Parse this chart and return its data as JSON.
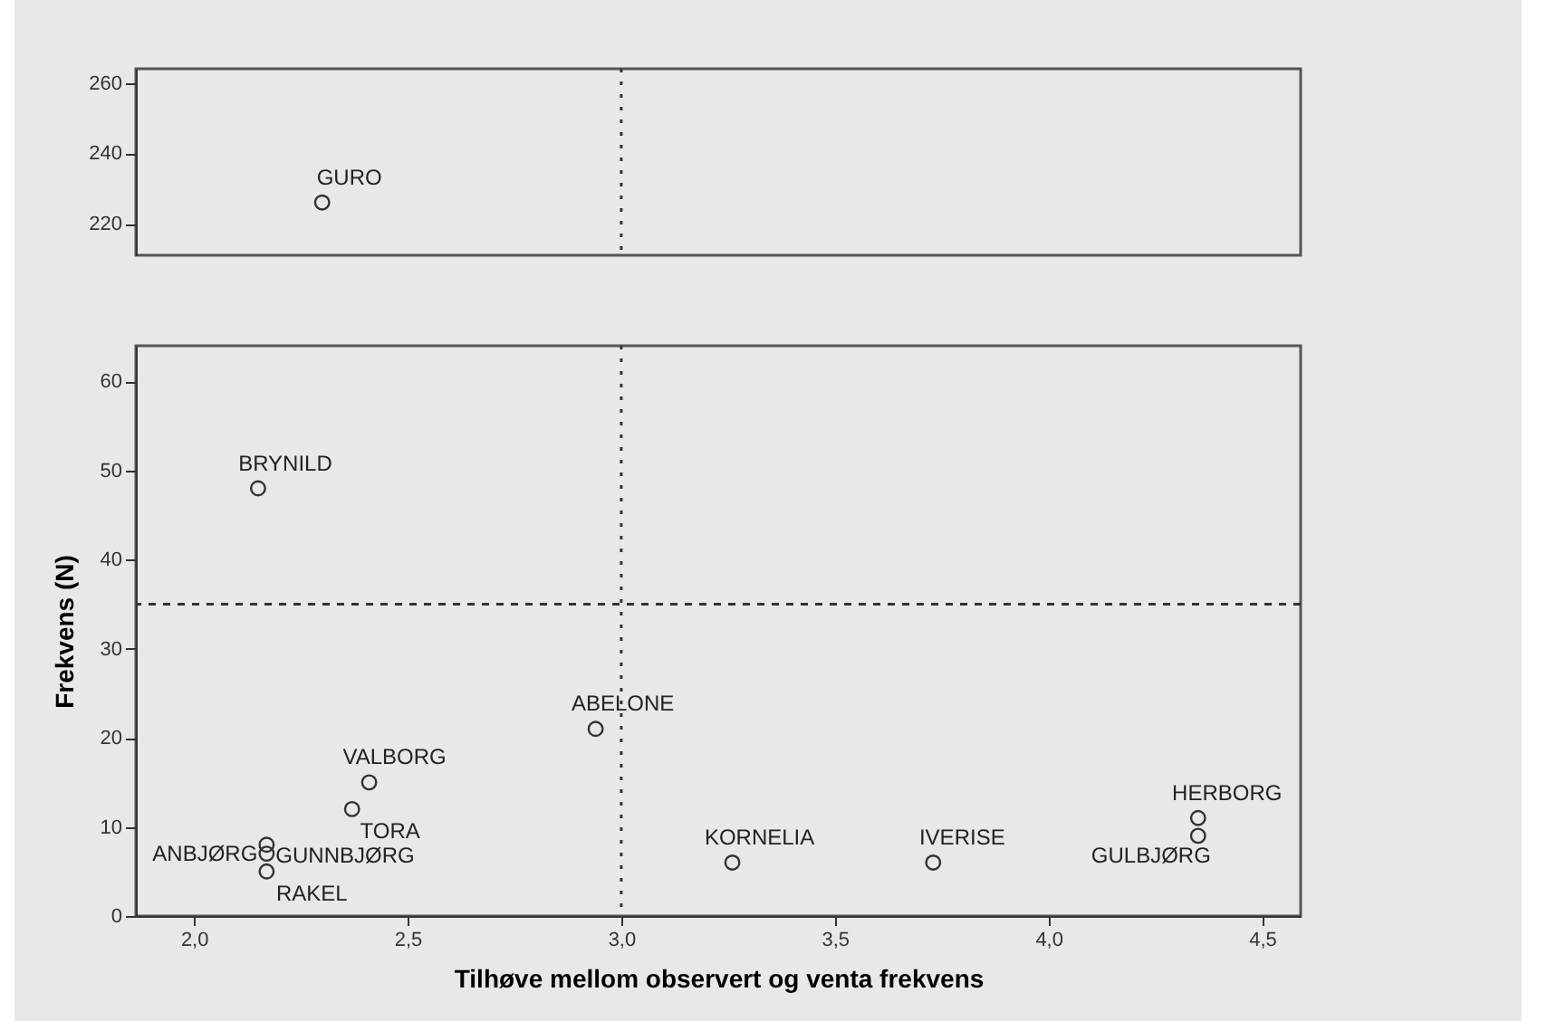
{
  "chart_data": [
    {
      "type": "scatter",
      "xlim": [
        1.864,
        4.59
      ],
      "ylim": [
        211,
        264
      ],
      "yticks": [
        220,
        240,
        260
      ],
      "tick_labels": "y",
      "grid": false,
      "marker": "circle",
      "series": [
        {
          "color": "#333333",
          "x": [
            2.3
          ],
          "values": [
            226
          ]
        }
      ],
      "ref_lines": [
        {
          "axis": "x",
          "value": 3.0,
          "line_style": "dotted",
          "color": "#333333"
        }
      ],
      "annotations": [
        {
          "text": "GURO",
          "x": 2.3,
          "y": 226
        }
      ]
    },
    {
      "type": "scatter",
      "xlabel": "Tilhøve mellom observert og venta frekvens",
      "ylabel": "Frekvens (N)",
      "xlim": [
        1.864,
        4.59
      ],
      "ylim": [
        0,
        64
      ],
      "xticks": [
        {
          "value": 2.0,
          "label": "2,0"
        },
        {
          "value": 2.5,
          "label": "2,5"
        },
        {
          "value": 3.0,
          "label": "3,0"
        },
        {
          "value": 3.5,
          "label": "3,5"
        },
        {
          "value": 4.0,
          "label": "4,0"
        },
        {
          "value": 4.5,
          "label": "4,5"
        }
      ],
      "yticks": [
        0,
        10,
        20,
        30,
        40,
        50,
        60
      ],
      "grid": false,
      "marker": "circle",
      "series": [
        {
          "color": "#333333",
          "x": [
            2.15,
            2.94,
            2.41,
            2.37,
            2.17,
            2.17,
            2.17,
            3.26,
            3.73,
            4.35,
            4.35
          ],
          "values": [
            48,
            21,
            15,
            12,
            8,
            7,
            5,
            6,
            6,
            11,
            9
          ]
        }
      ],
      "ref_lines": [
        {
          "axis": "x",
          "value": 3.0,
          "line_style": "dotted",
          "color": "#333333"
        },
        {
          "axis": "y",
          "value": 35,
          "line_style": "dashed",
          "color": "#333333"
        }
      ],
      "annotations": [
        {
          "text": "BRYNILD",
          "x": 2.15,
          "y": 48
        },
        {
          "text": "ABELONE",
          "x": 2.94,
          "y": 21
        },
        {
          "text": "VALBORG",
          "x": 2.41,
          "y": 15
        },
        {
          "text": "TORA",
          "x": 2.37,
          "y": 12
        },
        {
          "text": "ANBJØRG",
          "x": 2.17,
          "y": 8
        },
        {
          "text": "GUNNBJØRG",
          "x": 2.17,
          "y": 7
        },
        {
          "text": "RAKEL",
          "x": 2.17,
          "y": 5
        },
        {
          "text": "KORNELIA",
          "x": 3.26,
          "y": 6
        },
        {
          "text": "IVERISE",
          "x": 3.73,
          "y": 6
        },
        {
          "text": "HERBORG",
          "x": 4.35,
          "y": 11
        },
        {
          "text": "GULBJØRG",
          "x": 4.35,
          "y": 9
        }
      ]
    }
  ]
}
